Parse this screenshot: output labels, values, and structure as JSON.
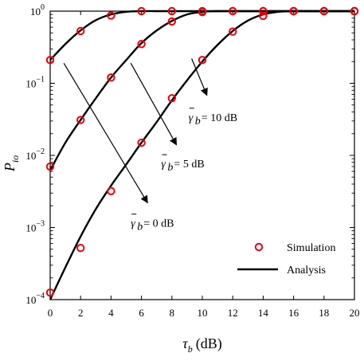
{
  "chart_data": {
    "type": "line",
    "title": "",
    "xlabel": {
      "base": "τ",
      "sub": "b",
      "unit": "(dB)"
    },
    "ylabel": {
      "base": "P",
      "sub": "io"
    },
    "xlim": [
      0,
      20
    ],
    "ylim": [
      0.0001,
      1
    ],
    "y_scale": "log",
    "grid": false,
    "x_ticks": [
      0,
      2,
      4,
      6,
      8,
      10,
      12,
      14,
      16,
      18,
      20
    ],
    "y_ticks": [
      {
        "value": 0.0001,
        "mant": "10",
        "exp": "−4"
      },
      {
        "value": 0.001,
        "mant": "10",
        "exp": "−3"
      },
      {
        "value": 0.01,
        "mant": "10",
        "exp": "−2"
      },
      {
        "value": 0.1,
        "mant": "10",
        "exp": "−1"
      },
      {
        "value": 1,
        "mant": "10",
        "exp": "0"
      }
    ],
    "legend": {
      "position": "bottom-right",
      "entries": [
        {
          "label": "Simulation",
          "marker": "circle"
        },
        {
          "label": "Analysis",
          "marker": "line"
        }
      ]
    },
    "colors": {
      "marker": "#e8000b",
      "line": "#000000",
      "axis": "#000000"
    },
    "series": [
      {
        "snr_db": 0,
        "simulation": {
          "x": [
            0,
            2,
            4,
            6,
            8,
            10,
            12,
            14,
            16,
            18,
            20
          ],
          "y": [
            0.000125,
            0.00052,
            0.0032,
            0.015,
            0.062,
            0.21,
            0.52,
            0.86,
            1.0,
            1.0,
            1.0
          ]
        },
        "analysis": {
          "x": [
            0,
            1,
            2,
            3,
            4,
            5,
            6,
            7,
            8,
            9,
            10,
            11,
            12,
            13,
            14,
            15,
            16,
            17,
            18,
            19,
            20
          ],
          "y": [
            0.0001,
            0.00028,
            0.00075,
            0.0018,
            0.0038,
            0.0075,
            0.015,
            0.029,
            0.058,
            0.11,
            0.2,
            0.34,
            0.53,
            0.74,
            0.9,
            0.98,
            1.0,
            1.0,
            1.0,
            1.0,
            1.0
          ]
        }
      },
      {
        "snr_db": 5,
        "simulation": {
          "x": [
            0,
            2,
            4,
            6,
            8,
            10,
            12,
            14,
            16,
            18,
            20
          ],
          "y": [
            0.007,
            0.031,
            0.12,
            0.35,
            0.72,
            0.97,
            1.0,
            1.0,
            1.0,
            1.0,
            1.0
          ]
        },
        "analysis": {
          "x": [
            0,
            1,
            2,
            3,
            4,
            5,
            6,
            7,
            8,
            9,
            10,
            11,
            12,
            13,
            14,
            15,
            16,
            17,
            18,
            19,
            20
          ],
          "y": [
            0.0062,
            0.015,
            0.031,
            0.062,
            0.12,
            0.21,
            0.36,
            0.54,
            0.73,
            0.9,
            0.98,
            1.0,
            1.0,
            1.0,
            1.0,
            1.0,
            1.0,
            1.0,
            1.0,
            1.0,
            1.0
          ]
        }
      },
      {
        "snr_db": 10,
        "simulation": {
          "x": [
            0,
            2,
            4,
            6,
            8,
            10,
            12,
            14,
            16,
            18,
            20
          ],
          "y": [
            0.21,
            0.53,
            0.87,
            1.0,
            1.0,
            1.0,
            1.0,
            1.0,
            1.0,
            1.0,
            1.0
          ]
        },
        "analysis": {
          "x": [
            0,
            1,
            2,
            3,
            4,
            5,
            6,
            7,
            8,
            9,
            10,
            11,
            12,
            13,
            14,
            15,
            16,
            17,
            18,
            19,
            20
          ],
          "y": [
            0.21,
            0.35,
            0.54,
            0.75,
            0.9,
            0.98,
            1.0,
            1.0,
            1.0,
            1.0,
            1.0,
            1.0,
            1.0,
            1.0,
            1.0,
            1.0,
            1.0,
            1.0,
            1.0,
            1.0,
            1.0
          ]
        }
      }
    ],
    "annotations": [
      {
        "name": "annotation-10db",
        "label": "= 10 dB",
        "tail": [
          9.3,
          0.22
        ],
        "head": [
          10.3,
          0.068
        ],
        "text_at": [
          9.1,
          0.03
        ],
        "text_dx": 16
      },
      {
        "name": "annotation-5db",
        "label": "= 5 dB",
        "tail": [
          5.3,
          0.19
        ],
        "head": [
          8.3,
          0.014
        ],
        "text_at": [
          7.3,
          0.0068
        ],
        "text_dx": 16
      },
      {
        "name": "annotation-0db",
        "label": "= 0 dB",
        "tail": [
          0.9,
          0.19
        ],
        "head": [
          6.4,
          0.0022
        ],
        "text_at": [
          5.3,
          0.00102
        ],
        "text_dx": 16
      }
    ]
  }
}
